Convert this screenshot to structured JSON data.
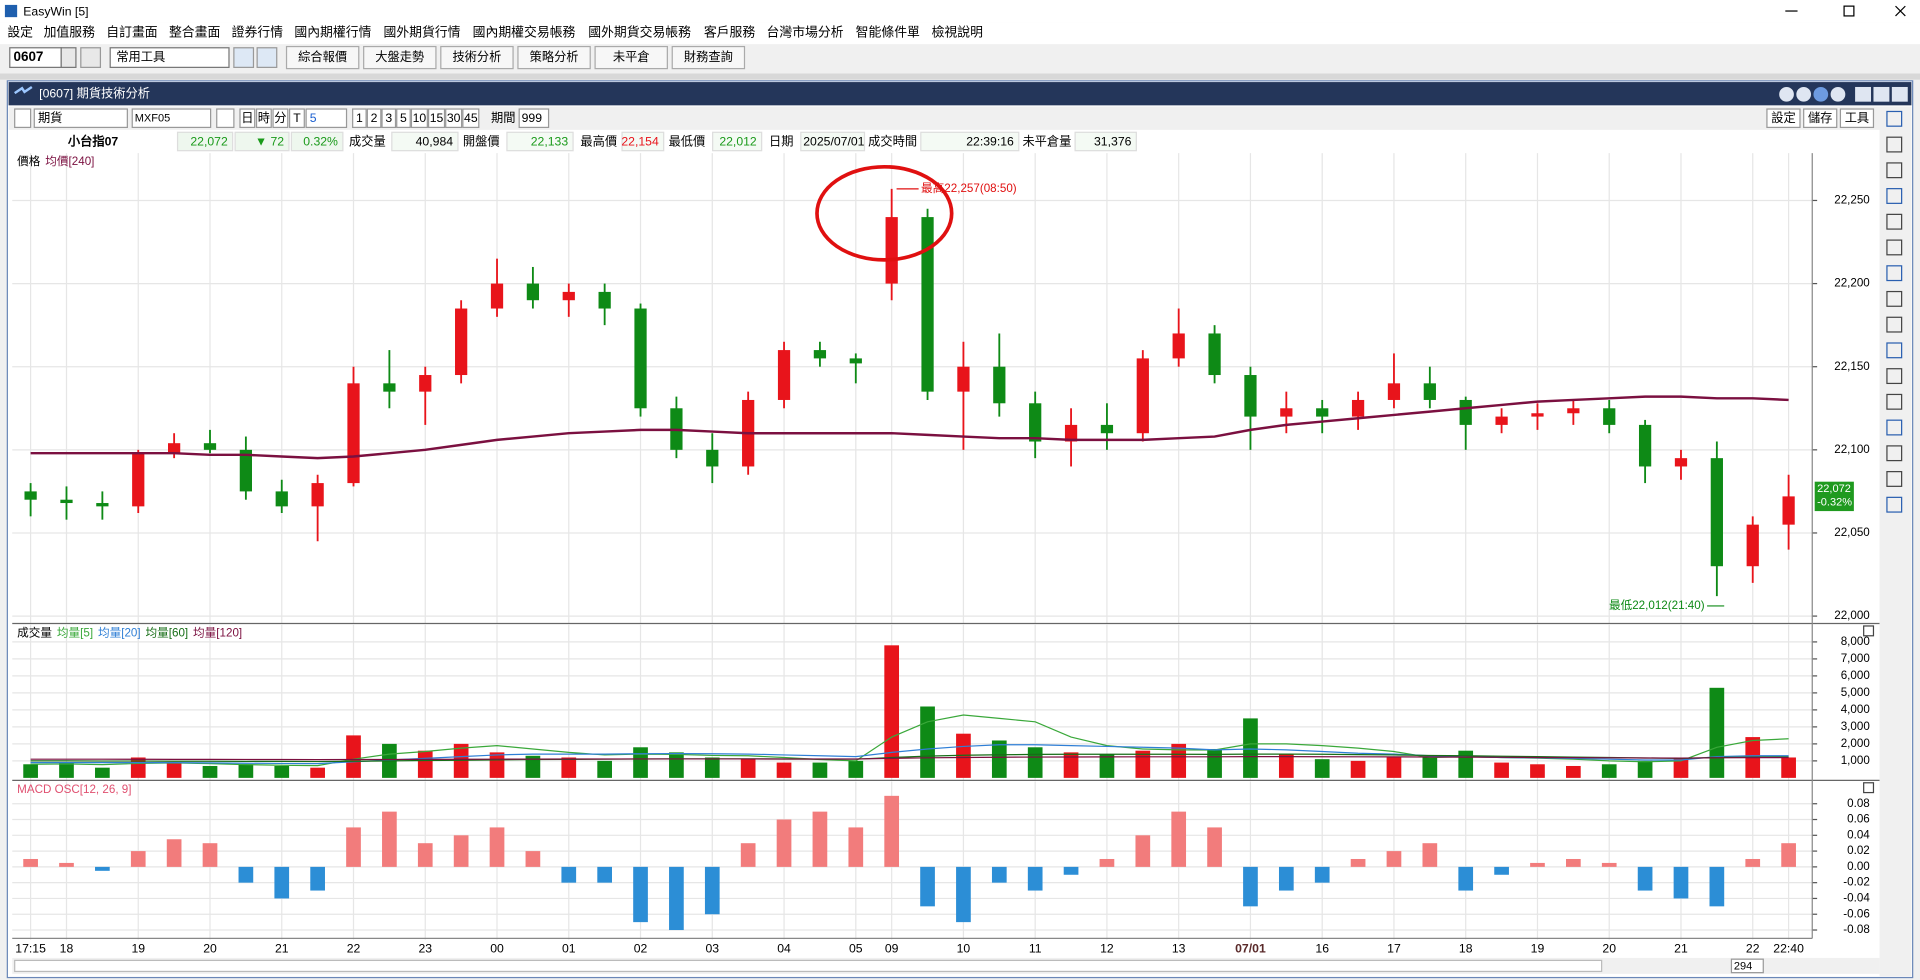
{
  "window": {
    "title": "EasyWin  [5]"
  },
  "menu": {
    "items": [
      "設定",
      "加值服務",
      "自訂畫面",
      "整合畫面",
      "證券行情",
      "國內期權行情",
      "國外期貨行情",
      "國內期權交易帳務",
      "國外期貨交易帳務",
      "客戶服務",
      "台灣市場分析",
      "智能條件單",
      "檢視說明"
    ]
  },
  "toolbar": {
    "code": "0607",
    "tool_select": "常用工具",
    "buttons": [
      "綜合報價",
      "大盤走勢",
      "技術分析",
      "策略分析",
      "未平倉",
      "財務查詢"
    ]
  },
  "subwindow": {
    "title": "[0607] 期貨技術分析"
  },
  "chart_toolbar": {
    "product": "期貨",
    "symbol": "MXF05",
    "period_buttons": [
      "日",
      "時",
      "分",
      "T"
    ],
    "period_select": "5",
    "range_buttons": [
      "1",
      "2",
      "3",
      "5",
      "10",
      "15",
      "30",
      "45"
    ],
    "period_label": "期間",
    "period_value": "999",
    "right_buttons": [
      "設定",
      "儲存",
      "工具"
    ]
  },
  "quote": {
    "name": "小台指07",
    "price": "22,072",
    "change": "▼ 72",
    "change_pct": "0.32%",
    "fields": [
      {
        "label": "成交量",
        "value": "40,984"
      },
      {
        "label": "開盤價",
        "value": "22,133"
      },
      {
        "label": "最高價",
        "value": "22,154"
      },
      {
        "label": "最低價",
        "value": "22,012"
      },
      {
        "label": "日期",
        "value": "2025/07/01"
      },
      {
        "label": "成交時間",
        "value": "22:39:16"
      },
      {
        "label": "未平倉量",
        "value": "31,376"
      }
    ]
  },
  "scrollbar": {
    "value": "294"
  },
  "chart_data": [
    {
      "type": "candlestick",
      "title": "價格",
      "grid": true,
      "up_color": "#e8141b",
      "down_color": "#0e8a16",
      "categories": [
        "17:15",
        "18",
        null,
        "19",
        null,
        "20",
        null,
        "21",
        null,
        "22",
        null,
        "23",
        null,
        "00",
        null,
        "01",
        null,
        "02",
        null,
        "03",
        null,
        "04",
        null,
        "05",
        "09",
        null,
        "10",
        null,
        "11",
        null,
        "12",
        null,
        "13",
        null,
        "07/01",
        null,
        "16",
        null,
        "17",
        null,
        "18",
        null,
        "19",
        null,
        "20",
        null,
        "21",
        null,
        "22",
        "22:40"
      ],
      "open": [
        22075,
        22070,
        22068,
        22066,
        22098,
        22104,
        22100,
        22075,
        22066,
        22080,
        22140,
        22135,
        22145,
        22185,
        22200,
        22190,
        22195,
        22185,
        22125,
        22100,
        22090,
        22130,
        22160,
        22155,
        22200,
        22240,
        22135,
        22150,
        22128,
        22105,
        22115,
        22110,
        22155,
        22170,
        22145,
        22120,
        22125,
        22120,
        22130,
        22140,
        22130,
        22115,
        22120,
        22122,
        22125,
        22115,
        22090,
        22095,
        22030,
        22055
      ],
      "high": [
        22080,
        22078,
        22075,
        22100,
        22110,
        22112,
        22108,
        22082,
        22085,
        22150,
        22160,
        22150,
        22190,
        22215,
        22210,
        22200,
        22200,
        22188,
        22132,
        22110,
        22135,
        22165,
        22165,
        22158,
        22257,
        22245,
        22165,
        22170,
        22135,
        22125,
        22128,
        22160,
        22185,
        22175,
        22150,
        22135,
        22130,
        22135,
        22158,
        22150,
        22132,
        22125,
        22128,
        22130,
        22130,
        22118,
        22100,
        22105,
        22060,
        22085
      ],
      "low": [
        22060,
        22058,
        22058,
        22062,
        22095,
        22098,
        22070,
        22062,
        22045,
        22078,
        22125,
        22115,
        22140,
        22180,
        22185,
        22180,
        22175,
        22120,
        22095,
        22080,
        22085,
        22125,
        22150,
        22140,
        22190,
        22130,
        22100,
        22120,
        22095,
        22090,
        22100,
        22105,
        22150,
        22140,
        22100,
        22110,
        22110,
        22112,
        22125,
        22125,
        22100,
        22110,
        22112,
        22115,
        22110,
        22080,
        22082,
        22012,
        22020,
        22040
      ],
      "close": [
        22070,
        22068,
        22066,
        22098,
        22104,
        22100,
        22075,
        22066,
        22080,
        22140,
        22135,
        22145,
        22185,
        22200,
        22190,
        22195,
        22185,
        22125,
        22100,
        22090,
        22130,
        22160,
        22155,
        22152,
        22240,
        22135,
        22150,
        22128,
        22105,
        22115,
        22110,
        22155,
        22170,
        22145,
        22120,
        22125,
        22120,
        22130,
        22140,
        22130,
        22115,
        22120,
        22122,
        22125,
        22115,
        22090,
        22095,
        22030,
        22055,
        22072
      ],
      "series": [
        {
          "name": "均價[240]",
          "color": "#7b1040",
          "values": [
            22098,
            22098,
            22098,
            22098,
            22098,
            22097,
            22097,
            22096,
            22095,
            22096,
            22098,
            22100,
            22103,
            22106,
            22108,
            22110,
            22111,
            22112,
            22112,
            22111,
            22110,
            22110,
            22110,
            22110,
            22110,
            22109,
            22108,
            22107,
            22107,
            22106,
            22106,
            22106,
            22107,
            22108,
            22112,
            22115,
            22117,
            22119,
            22121,
            22123,
            22125,
            22127,
            22129,
            22130,
            22131,
            22132,
            22132,
            22131,
            22131,
            22130
          ]
        }
      ],
      "ylim": [
        21997,
        22277
      ],
      "yticks": [
        {
          "value": 22000,
          "label": "22,000"
        },
        {
          "value": 22050,
          "label": "22,050"
        },
        {
          "value": 22100,
          "label": "22,100"
        },
        {
          "value": 22150,
          "label": "22,150"
        },
        {
          "value": 22200,
          "label": "22,200"
        },
        {
          "value": 22250,
          "label": "22,250"
        }
      ],
      "annotations": [
        {
          "text": "最高22,257(08:50)"
        },
        {
          "text": "最低22,012(21:40)"
        }
      ],
      "last_price_label": "22,072",
      "last_change_label": "-0.32%"
    },
    {
      "type": "bar",
      "title": "成交量",
      "grid": true,
      "values": [
        800,
        900,
        600,
        1200,
        900,
        700,
        800,
        700,
        600,
        2500,
        2000,
        1600,
        2000,
        1500,
        1300,
        1200,
        1000,
        1800,
        1500,
        1200,
        1100,
        900,
        900,
        1000,
        7800,
        4200,
        2600,
        2200,
        1800,
        1500,
        1400,
        1600,
        2000,
        1700,
        3500,
        1400,
        1100,
        1000,
        1200,
        1300,
        1600,
        900,
        800,
        700,
        800,
        1000,
        1200,
        5300,
        2400,
        1200
      ],
      "series": [
        {
          "name": "均量[5]",
          "color": "#3aa83a",
          "values": [
            800,
            820,
            780,
            850,
            880,
            840,
            780,
            740,
            720,
            1100,
            1400,
            1550,
            1750,
            1900,
            1700,
            1500,
            1350,
            1400,
            1380,
            1320,
            1300,
            1200,
            1080,
            1000,
            2400,
            3300,
            3700,
            3500,
            3300,
            2400,
            1900,
            1700,
            1650,
            1640,
            2000,
            2000,
            1900,
            1750,
            1550,
            1200,
            1260,
            1200,
            1160,
            1100,
            1000,
            950,
            1000,
            1800,
            2200,
            2300
          ]
        },
        {
          "name": "均量[20]",
          "color": "#2f7fd6",
          "values": [
            900,
            900,
            900,
            900,
            900,
            880,
            860,
            850,
            840,
            950,
            1050,
            1150,
            1250,
            1350,
            1400,
            1400,
            1400,
            1420,
            1430,
            1420,
            1400,
            1350,
            1300,
            1250,
            1500,
            1700,
            1850,
            1950,
            1950,
            1900,
            1850,
            1800,
            1750,
            1650,
            1700,
            1650,
            1550,
            1450,
            1400,
            1300,
            1250,
            1200,
            1180,
            1150,
            1100,
            1050,
            1050,
            1250,
            1300,
            1300
          ]
        },
        {
          "name": "均量[60]",
          "color": "#176e17",
          "values": [
            1000,
            1000,
            990,
            990,
            980,
            980,
            970,
            970,
            960,
            980,
            1000,
            1020,
            1040,
            1060,
            1080,
            1090,
            1100,
            1110,
            1120,
            1120,
            1120,
            1110,
            1100,
            1100,
            1200,
            1280,
            1330,
            1360,
            1380,
            1390,
            1390,
            1390,
            1390,
            1380,
            1400,
            1400,
            1390,
            1370,
            1350,
            1320,
            1300,
            1270,
            1250,
            1220,
            1200,
            1170,
            1150,
            1200,
            1220,
            1230
          ]
        },
        {
          "name": "均量[120]",
          "color": "#7b1040",
          "values": [
            1100,
            1100,
            1100,
            1095,
            1090,
            1090,
            1085,
            1080,
            1075,
            1080,
            1085,
            1090,
            1095,
            1100,
            1105,
            1110,
            1110,
            1115,
            1115,
            1115,
            1115,
            1110,
            1110,
            1110,
            1150,
            1180,
            1200,
            1215,
            1225,
            1230,
            1235,
            1240,
            1240,
            1240,
            1250,
            1250,
            1245,
            1240,
            1235,
            1230,
            1220,
            1210,
            1200,
            1190,
            1180,
            1170,
            1160,
            1180,
            1190,
            1195
          ]
        }
      ],
      "ylim": [
        0,
        8866
      ],
      "yticks": [
        {
          "value": 1000,
          "label": "1,000"
        },
        {
          "value": 2000,
          "label": "2,000"
        },
        {
          "value": 3000,
          "label": "3,000"
        },
        {
          "value": 4000,
          "label": "4,000"
        },
        {
          "value": 5000,
          "label": "5,000"
        },
        {
          "value": 6000,
          "label": "6,000"
        },
        {
          "value": 7000,
          "label": "7,000"
        },
        {
          "value": 8000,
          "label": "8,000"
        }
      ]
    },
    {
      "type": "bar",
      "title": "MACD OSC[12, 26, 9]",
      "title_color": "#e05070",
      "grid": true,
      "color_positive": "#f27c7c",
      "color_negative": "#2c8ed6",
      "values": [
        0.01,
        0.005,
        -0.005,
        0.02,
        0.035,
        0.03,
        -0.02,
        -0.04,
        -0.03,
        0.05,
        0.07,
        0.03,
        0.04,
        0.05,
        0.02,
        -0.02,
        -0.02,
        -0.07,
        -0.08,
        -0.06,
        0.03,
        0.06,
        0.07,
        0.05,
        0.09,
        -0.05,
        -0.07,
        -0.02,
        -0.03,
        -0.01,
        0.01,
        0.04,
        0.07,
        0.05,
        -0.05,
        -0.03,
        -0.02,
        0.01,
        0.02,
        0.03,
        -0.03,
        -0.01,
        0.005,
        0.01,
        0.005,
        -0.03,
        -0.04,
        -0.05,
        0.01,
        0.03
      ],
      "ylim": [
        -0.089,
        0.105
      ],
      "yticks": [
        -0.08,
        -0.06,
        -0.04,
        -0.02,
        {
          "value": 0,
          "label": "0.00"
        },
        0.02,
        0.04,
        0.06,
        0.08
      ]
    }
  ]
}
